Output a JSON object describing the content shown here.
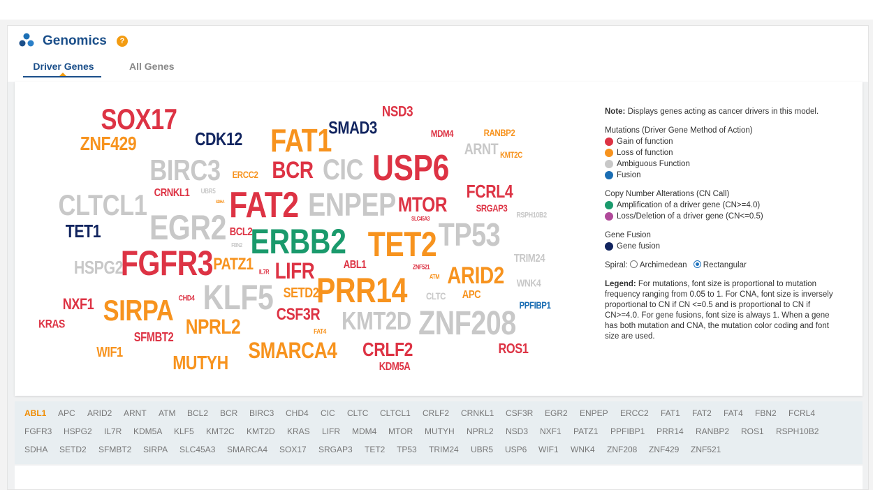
{
  "header": {
    "title": "Genomics",
    "help": "?"
  },
  "tabs": [
    {
      "label": "Driver Genes"
    },
    {
      "label": "All Genes"
    }
  ],
  "colors": {
    "gain": "#dd3344",
    "loss": "#f7931e",
    "ambiguous": "#c8c8c8",
    "fusion": "#1a6db3",
    "amplification": "#1a9a6c",
    "deletion": "#b04a9a",
    "gene_fusion": "#11245f"
  },
  "cloud": [
    {
      "t": "SOX17",
      "c": "gain"
    },
    {
      "t": "NSD3",
      "c": "gain"
    },
    {
      "t": "ZNF429",
      "c": "loss"
    },
    {
      "t": "CDK12",
      "c": "gene_fusion"
    },
    {
      "t": "FAT1",
      "c": "loss"
    },
    {
      "t": "SMAD3",
      "c": "gene_fusion"
    },
    {
      "t": "MDM4",
      "c": "gain"
    },
    {
      "t": "RANBP2",
      "c": "loss"
    },
    {
      "t": "ARNT",
      "c": "ambiguous"
    },
    {
      "t": "KMT2C",
      "c": "loss"
    },
    {
      "t": "BIRC3",
      "c": "ambiguous"
    },
    {
      "t": "ERCC2",
      "c": "loss"
    },
    {
      "t": "BCR",
      "c": "gain"
    },
    {
      "t": "CIC",
      "c": "ambiguous"
    },
    {
      "t": "USP6",
      "c": "gain"
    },
    {
      "t": "CRNKL1",
      "c": "gain"
    },
    {
      "t": "UBR5",
      "c": "ambiguous"
    },
    {
      "t": "SDHA",
      "c": "loss"
    },
    {
      "t": "CLTCL1",
      "c": "ambiguous"
    },
    {
      "t": "FAT2",
      "c": "gain"
    },
    {
      "t": "ENPEP",
      "c": "ambiguous"
    },
    {
      "t": "MTOR",
      "c": "gain"
    },
    {
      "t": "FCRL4",
      "c": "gain"
    },
    {
      "t": "SRGAP3",
      "c": "gain"
    },
    {
      "t": "SLC45A3",
      "c": "gain"
    },
    {
      "t": "RSPH10B2",
      "c": "ambiguous"
    },
    {
      "t": "TET1",
      "c": "gene_fusion"
    },
    {
      "t": "EGR2",
      "c": "ambiguous"
    },
    {
      "t": "BCL2",
      "c": "gain"
    },
    {
      "t": "FBN2",
      "c": "ambiguous"
    },
    {
      "t": "ERBB2",
      "c": "amplification"
    },
    {
      "t": "TET2",
      "c": "loss"
    },
    {
      "t": "TP53",
      "c": "ambiguous"
    },
    {
      "t": "HSPG2",
      "c": "ambiguous"
    },
    {
      "t": "FGFR3",
      "c": "gain"
    },
    {
      "t": "PATZ1",
      "c": "loss"
    },
    {
      "t": "IL7R",
      "c": "gain"
    },
    {
      "t": "LIFR",
      "c": "gain"
    },
    {
      "t": "ABL1",
      "c": "gain"
    },
    {
      "t": "ZNF521",
      "c": "gain"
    },
    {
      "t": "ATM",
      "c": "loss"
    },
    {
      "t": "ARID2",
      "c": "loss"
    },
    {
      "t": "TRIM24",
      "c": "ambiguous"
    },
    {
      "t": "KLF5",
      "c": "ambiguous"
    },
    {
      "t": "SETD2",
      "c": "loss"
    },
    {
      "t": "PRR14",
      "c": "loss"
    },
    {
      "t": "CLTC",
      "c": "ambiguous"
    },
    {
      "t": "APC",
      "c": "loss"
    },
    {
      "t": "WNK4",
      "c": "ambiguous"
    },
    {
      "t": "NXF1",
      "c": "gain"
    },
    {
      "t": "CHD4",
      "c": "gain"
    },
    {
      "t": "SIRPA",
      "c": "loss"
    },
    {
      "t": "PPFIBP1",
      "c": "fusion"
    },
    {
      "t": "KRAS",
      "c": "gain"
    },
    {
      "t": "CSF3R",
      "c": "gain"
    },
    {
      "t": "NPRL2",
      "c": "loss"
    },
    {
      "t": "KMT2D",
      "c": "ambiguous"
    },
    {
      "t": "ZNF208",
      "c": "ambiguous"
    },
    {
      "t": "SFMBT2",
      "c": "gain"
    },
    {
      "t": "FAT4",
      "c": "loss"
    },
    {
      "t": "WIF1",
      "c": "loss"
    },
    {
      "t": "SMARCA4",
      "c": "loss"
    },
    {
      "t": "CRLF2",
      "c": "gain"
    },
    {
      "t": "ROS1",
      "c": "gain"
    },
    {
      "t": "MUTYH",
      "c": "loss"
    },
    {
      "t": "KDM5A",
      "c": "gain"
    }
  ],
  "sidebar": {
    "note_label": "Note:",
    "note_text": " Displays genes acting as cancer drivers in this model.",
    "mutations_title": "Mutations (Driver Gene Method of Action)",
    "mutations": [
      "Gain of function",
      "Loss of function",
      "Ambiguous Function",
      "Fusion"
    ],
    "cna_title": "Copy Number Alterations (CN Call)",
    "cna": [
      "Amplification of a driver gene (CN>=4.0)",
      "Loss/Deletion of a driver gene (CN<=0.5)"
    ],
    "fusion_title": "Gene Fusion",
    "fusion": [
      "Gene fusion"
    ],
    "spiral_label": "Spiral:",
    "spiral_options": [
      "Archimedean",
      "Rectangular"
    ],
    "legend_label": "Legend:",
    "legend_text": " For mutations, font size is proportional to mutation frequency ranging from 0.05 to 1. For CNA, font size is inversely proportional to CN if CN <=0.5 and is proportional to CN if CN>=4.0. For gene fusions, font size is always 1. When a gene has both mutation and CNA, the mutation color coding and font size are used."
  },
  "gene_list": [
    "ABL1",
    "APC",
    "ARID2",
    "ARNT",
    "ATM",
    "BCL2",
    "BCR",
    "BIRC3",
    "CHD4",
    "CIC",
    "CLTC",
    "CLTCL1",
    "CRLF2",
    "CRNKL1",
    "CSF3R",
    "EGR2",
    "ENPEP",
    "ERCC2",
    "FAT1",
    "FAT2",
    "FAT4",
    "FBN2",
    "FCRL4",
    "FGFR3",
    "HSPG2",
    "IL7R",
    "KDM5A",
    "KLF5",
    "KMT2C",
    "KMT2D",
    "KRAS",
    "LIFR",
    "MDM4",
    "MTOR",
    "MUTYH",
    "NPRL2",
    "NSD3",
    "NXF1",
    "PATZ1",
    "PPFIBP1",
    "PRR14",
    "RANBP2",
    "ROS1",
    "RSPH10B2",
    "SDHA",
    "SETD2",
    "SFMBT2",
    "SIRPA",
    "SLC45A3",
    "SMARCA4",
    "SOX17",
    "SRGAP3",
    "TET2",
    "TP53",
    "TRIM24",
    "UBR5",
    "USP6",
    "WIF1",
    "WNK4",
    "ZNF208",
    "ZNF429",
    "ZNF521"
  ],
  "gene_list_selected": "ABL1"
}
